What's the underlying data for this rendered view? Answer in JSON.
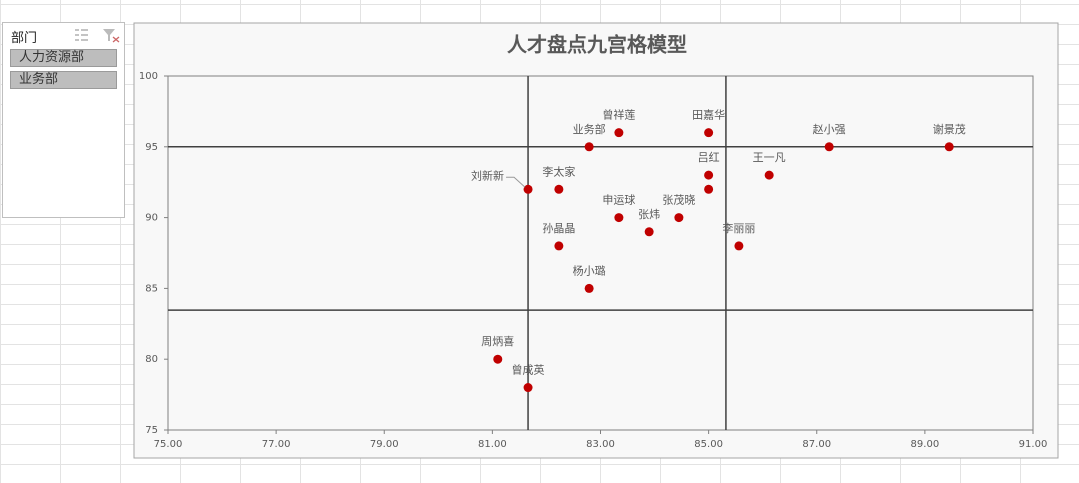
{
  "slicer": {
    "title": "部门",
    "items": [
      "人力资源部",
      "业务部"
    ]
  },
  "chart_data": {
    "type": "scatter",
    "title": "人才盘点九宫格模型",
    "color": "#c00000",
    "labels": [
      "曾祥莲",
      "业务部",
      "田嘉华",
      "赵小强",
      "谢景茂",
      "王一凡",
      "吕红",
      null,
      "刘新新",
      "李太家",
      "申运球",
      "张茂晓",
      "张炜",
      "李丽丽",
      "孙晶晶",
      "杨小璐",
      "周炳喜",
      "曾成英"
    ],
    "x": [
      83.34,
      82.79,
      85.0,
      87.23,
      89.45,
      86.12,
      85.0,
      85.0,
      81.66,
      82.23,
      83.34,
      84.45,
      83.9,
      85.56,
      82.23,
      82.79,
      81.1,
      81.66
    ],
    "values": [
      96,
      95,
      96,
      95,
      95,
      93,
      93,
      92,
      92,
      92,
      90,
      90,
      89,
      88,
      88,
      85,
      80,
      78
    ],
    "x_dividers": [
      81.66,
      85.32
    ],
    "y_dividers": [
      95,
      83.47
    ],
    "xlim": [
      75,
      91
    ],
    "ylim": [
      75,
      100
    ],
    "xticks": [
      {
        "value": 75,
        "label": "75.00"
      },
      {
        "value": 77,
        "label": "77.00"
      },
      {
        "value": 79,
        "label": "79.00"
      },
      {
        "value": 81,
        "label": "81.00"
      },
      {
        "value": 83,
        "label": "83.00"
      },
      {
        "value": 85,
        "label": "85.00"
      },
      {
        "value": 87,
        "label": "87.00"
      },
      {
        "value": 89,
        "label": "89.00"
      },
      {
        "value": 91,
        "label": "91.00"
      }
    ],
    "yticks": [
      75,
      80,
      85,
      90,
      95,
      100
    ]
  }
}
